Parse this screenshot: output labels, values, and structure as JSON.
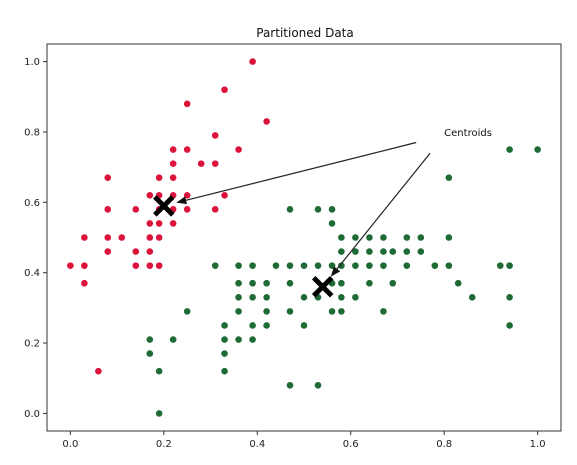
{
  "chart_data": {
    "type": "scatter",
    "title": "Partitioned Data",
    "xlabel": "",
    "ylabel": "",
    "xlim": [
      -0.05,
      1.05
    ],
    "ylim": [
      -0.05,
      1.05
    ],
    "x_ticks": [
      "0.0",
      "0.2",
      "0.4",
      "0.6",
      "0.8",
      "1.0"
    ],
    "y_ticks": [
      "0.0",
      "0.2",
      "0.4",
      "0.6",
      "0.8",
      "1.0"
    ],
    "grid": false,
    "legend": "none",
    "series": [
      {
        "color": "#dc143c",
        "points": [
          [
            0.0,
            0.42
          ],
          [
            0.03,
            0.42
          ],
          [
            0.03,
            0.37
          ],
          [
            0.03,
            0.5
          ],
          [
            0.06,
            0.12
          ],
          [
            0.08,
            0.46
          ],
          [
            0.08,
            0.5
          ],
          [
            0.08,
            0.58
          ],
          [
            0.08,
            0.67
          ],
          [
            0.11,
            0.5
          ],
          [
            0.14,
            0.42
          ],
          [
            0.14,
            0.46
          ],
          [
            0.14,
            0.58
          ],
          [
            0.17,
            0.42
          ],
          [
            0.17,
            0.46
          ],
          [
            0.17,
            0.5
          ],
          [
            0.17,
            0.54
          ],
          [
            0.17,
            0.62
          ],
          [
            0.19,
            0.42
          ],
          [
            0.19,
            0.5
          ],
          [
            0.19,
            0.54
          ],
          [
            0.19,
            0.58
          ],
          [
            0.19,
            0.62
          ],
          [
            0.19,
            0.67
          ],
          [
            0.22,
            0.54
          ],
          [
            0.22,
            0.58
          ],
          [
            0.22,
            0.62
          ],
          [
            0.22,
            0.67
          ],
          [
            0.22,
            0.71
          ],
          [
            0.22,
            0.75
          ],
          [
            0.25,
            0.58
          ],
          [
            0.25,
            0.62
          ],
          [
            0.25,
            0.75
          ],
          [
            0.25,
            0.88
          ],
          [
            0.28,
            0.71
          ],
          [
            0.31,
            0.58
          ],
          [
            0.31,
            0.71
          ],
          [
            0.31,
            0.79
          ],
          [
            0.33,
            0.62
          ],
          [
            0.33,
            0.92
          ],
          [
            0.36,
            0.75
          ],
          [
            0.39,
            1.0
          ],
          [
            0.42,
            0.83
          ]
        ]
      },
      {
        "color": "#1e6b35",
        "points": [
          [
            0.17,
            0.21
          ],
          [
            0.17,
            0.17
          ],
          [
            0.19,
            0.0
          ],
          [
            0.19,
            0.12
          ],
          [
            0.22,
            0.21
          ],
          [
            0.25,
            0.29
          ],
          [
            0.31,
            0.42
          ],
          [
            0.33,
            0.12
          ],
          [
            0.33,
            0.17
          ],
          [
            0.33,
            0.21
          ],
          [
            0.33,
            0.25
          ],
          [
            0.36,
            0.29
          ],
          [
            0.36,
            0.33
          ],
          [
            0.36,
            0.37
          ],
          [
            0.36,
            0.21
          ],
          [
            0.36,
            0.42
          ],
          [
            0.39,
            0.21
          ],
          [
            0.39,
            0.25
          ],
          [
            0.39,
            0.33
          ],
          [
            0.39,
            0.37
          ],
          [
            0.39,
            0.42
          ],
          [
            0.42,
            0.25
          ],
          [
            0.42,
            0.29
          ],
          [
            0.42,
            0.33
          ],
          [
            0.42,
            0.37
          ],
          [
            0.44,
            0.42
          ],
          [
            0.47,
            0.08
          ],
          [
            0.47,
            0.29
          ],
          [
            0.47,
            0.37
          ],
          [
            0.47,
            0.42
          ],
          [
            0.47,
            0.58
          ],
          [
            0.5,
            0.25
          ],
          [
            0.5,
            0.33
          ],
          [
            0.5,
            0.42
          ],
          [
            0.53,
            0.08
          ],
          [
            0.53,
            0.33
          ],
          [
            0.53,
            0.42
          ],
          [
            0.53,
            0.58
          ],
          [
            0.56,
            0.29
          ],
          [
            0.56,
            0.37
          ],
          [
            0.56,
            0.42
          ],
          [
            0.56,
            0.54
          ],
          [
            0.56,
            0.58
          ],
          [
            0.58,
            0.29
          ],
          [
            0.58,
            0.33
          ],
          [
            0.58,
            0.37
          ],
          [
            0.58,
            0.42
          ],
          [
            0.58,
            0.46
          ],
          [
            0.58,
            0.5
          ],
          [
            0.61,
            0.33
          ],
          [
            0.61,
            0.42
          ],
          [
            0.61,
            0.46
          ],
          [
            0.61,
            0.5
          ],
          [
            0.64,
            0.37
          ],
          [
            0.64,
            0.42
          ],
          [
            0.64,
            0.46
          ],
          [
            0.64,
            0.5
          ],
          [
            0.67,
            0.29
          ],
          [
            0.67,
            0.42
          ],
          [
            0.67,
            0.46
          ],
          [
            0.67,
            0.5
          ],
          [
            0.69,
            0.37
          ],
          [
            0.69,
            0.46
          ],
          [
            0.72,
            0.42
          ],
          [
            0.72,
            0.46
          ],
          [
            0.72,
            0.5
          ],
          [
            0.75,
            0.46
          ],
          [
            0.75,
            0.5
          ],
          [
            0.78,
            0.42
          ],
          [
            0.81,
            0.42
          ],
          [
            0.81,
            0.5
          ],
          [
            0.81,
            0.67
          ],
          [
            0.83,
            0.37
          ],
          [
            0.86,
            0.33
          ],
          [
            0.92,
            0.42
          ],
          [
            0.94,
            0.25
          ],
          [
            0.94,
            0.33
          ],
          [
            0.94,
            0.42
          ],
          [
            0.94,
            0.75
          ],
          [
            1.0,
            0.75
          ]
        ]
      }
    ],
    "centroids": [
      {
        "x": 0.2,
        "y": 0.59,
        "marker": "x",
        "color": "#000000"
      },
      {
        "x": 0.54,
        "y": 0.36,
        "marker": "x",
        "color": "#000000"
      }
    ],
    "annotation": {
      "text": "Centroids",
      "text_position": [
        0.8,
        0.8
      ],
      "arrow_tails": [
        [
          0.74,
          0.77
        ],
        [
          0.77,
          0.74
        ]
      ]
    }
  }
}
